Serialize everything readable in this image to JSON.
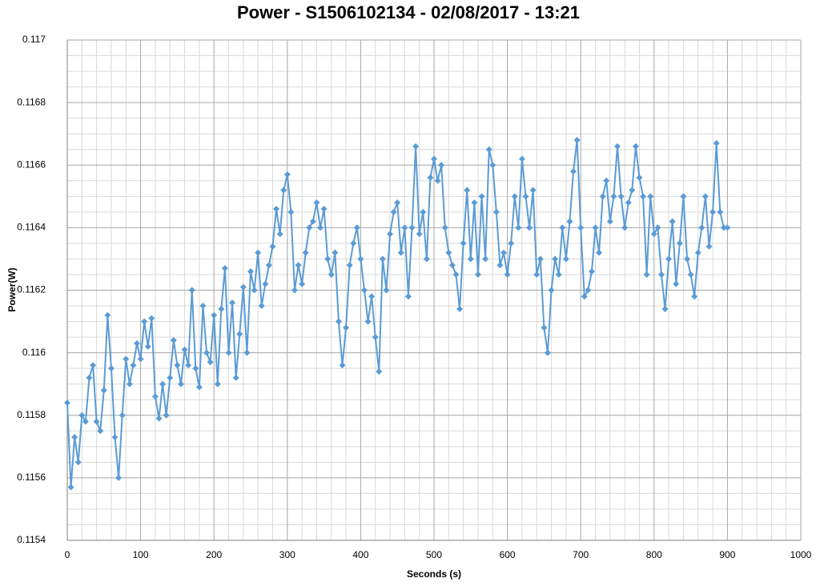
{
  "chart_data": {
    "type": "line",
    "title": "Power - S1506102134 - 02/08/2017 - 13:21",
    "x_label": "Seconds (s)",
    "y_label": "Power(W)",
    "xlim": [
      0,
      1000
    ],
    "ylim": [
      0.1154,
      0.117
    ],
    "xticks": [
      0,
      100,
      200,
      300,
      400,
      500,
      600,
      700,
      800,
      900,
      1000
    ],
    "yticks": [
      0.1154,
      0.1156,
      0.1158,
      0.116,
      0.1162,
      0.1164,
      0.1166,
      0.1168,
      0.117
    ],
    "xminorticks": [
      20,
      40,
      60,
      80,
      120,
      140,
      160,
      180,
      220,
      240,
      260,
      280,
      320,
      340,
      360,
      380,
      420,
      440,
      460,
      480,
      520,
      540,
      560,
      580,
      620,
      640,
      660,
      680,
      720,
      740,
      760,
      780,
      820,
      840,
      860,
      880,
      920,
      940,
      960,
      980
    ],
    "yminorticks": [
      0.11545,
      0.1155,
      0.11555,
      0.11565,
      0.1157,
      0.11575,
      0.11585,
      0.1159,
      0.11595,
      0.11605,
      0.1161,
      0.11615,
      0.11625,
      0.1163,
      0.11635,
      0.11645,
      0.1165,
      0.11655,
      0.11665,
      0.1167,
      0.11675,
      0.11685,
      0.1169,
      0.11695
    ],
    "grid": true,
    "x": [
      0,
      5,
      10,
      15,
      20,
      25,
      30,
      35,
      40,
      45,
      50,
      55,
      60,
      65,
      70,
      75,
      80,
      85,
      90,
      95,
      100,
      105,
      110,
      115,
      120,
      125,
      130,
      135,
      140,
      145,
      150,
      155,
      160,
      165,
      170,
      175,
      180,
      185,
      190,
      195,
      200,
      205,
      210,
      215,
      220,
      225,
      230,
      235,
      240,
      245,
      250,
      255,
      260,
      265,
      270,
      275,
      280,
      285,
      290,
      295,
      300,
      305,
      310,
      315,
      320,
      325,
      330,
      335,
      340,
      345,
      350,
      355,
      360,
      365,
      370,
      375,
      380,
      385,
      390,
      395,
      400,
      405,
      410,
      415,
      420,
      425,
      430,
      435,
      440,
      445,
      450,
      455,
      460,
      465,
      470,
      475,
      480,
      485,
      490,
      495,
      500,
      505,
      510,
      515,
      520,
      525,
      530,
      535,
      540,
      545,
      550,
      555,
      560,
      565,
      570,
      575,
      580,
      585,
      590,
      595,
      600,
      605,
      610,
      615,
      620,
      625,
      630,
      635,
      640,
      645,
      650,
      655,
      660,
      665,
      670,
      675,
      680,
      685,
      690,
      695,
      700,
      705,
      710,
      715,
      720,
      725,
      730,
      735,
      740,
      745,
      750,
      755,
      760,
      765,
      770,
      775,
      780,
      785,
      790,
      795,
      800,
      805,
      810,
      815,
      820,
      825,
      830,
      835,
      840,
      845,
      850,
      855,
      860,
      865,
      870,
      875,
      880,
      885,
      890,
      895,
      900
    ],
    "series": [
      {
        "color": "#5b9bd5",
        "values": [
          0.11584,
          0.11557,
          0.11573,
          0.11565,
          0.1158,
          0.11578,
          0.11592,
          0.11596,
          0.11578,
          0.11575,
          0.11588,
          0.11612,
          0.11595,
          0.11573,
          0.1156,
          0.1158,
          0.11598,
          0.1159,
          0.11596,
          0.11603,
          0.11598,
          0.1161,
          0.11602,
          0.11611,
          0.11586,
          0.11579,
          0.1159,
          0.1158,
          0.11592,
          0.11604,
          0.11596,
          0.1159,
          0.11601,
          0.11596,
          0.1162,
          0.11595,
          0.11589,
          0.11615,
          0.116,
          0.11597,
          0.11612,
          0.1159,
          0.11614,
          0.11627,
          0.116,
          0.11616,
          0.11592,
          0.11606,
          0.11621,
          0.116,
          0.11626,
          0.1162,
          0.11632,
          0.11615,
          0.11622,
          0.11628,
          0.11634,
          0.11646,
          0.11638,
          0.11652,
          0.11657,
          0.11645,
          0.1162,
          0.11628,
          0.11622,
          0.11632,
          0.1164,
          0.11642,
          0.11648,
          0.1164,
          0.11646,
          0.1163,
          0.11625,
          0.11632,
          0.1161,
          0.11596,
          0.11608,
          0.11628,
          0.11635,
          0.1164,
          0.1163,
          0.1162,
          0.1161,
          0.11618,
          0.11605,
          0.11594,
          0.1163,
          0.1162,
          0.11638,
          0.11645,
          0.11648,
          0.11632,
          0.1164,
          0.11618,
          0.1164,
          0.11666,
          0.11638,
          0.11645,
          0.1163,
          0.11656,
          0.11662,
          0.11655,
          0.1166,
          0.1164,
          0.11632,
          0.11628,
          0.11625,
          0.11614,
          0.11635,
          0.11652,
          0.1163,
          0.11648,
          0.11625,
          0.1165,
          0.1163,
          0.11665,
          0.1166,
          0.11645,
          0.11628,
          0.11632,
          0.11625,
          0.11635,
          0.1165,
          0.1164,
          0.11662,
          0.1165,
          0.1164,
          0.11652,
          0.11625,
          0.1163,
          0.11608,
          0.116,
          0.1162,
          0.1163,
          0.11625,
          0.1164,
          0.1163,
          0.11642,
          0.11658,
          0.11668,
          0.1164,
          0.11618,
          0.1162,
          0.11626,
          0.1164,
          0.11632,
          0.1165,
          0.11655,
          0.11642,
          0.1165,
          0.11666,
          0.1165,
          0.1164,
          0.11648,
          0.11652,
          0.11666,
          0.11656,
          0.1165,
          0.11625,
          0.1165,
          0.11638,
          0.1164,
          0.11625,
          0.11614,
          0.1163,
          0.11642,
          0.11622,
          0.11635,
          0.1165,
          0.1163,
          0.11625,
          0.11618,
          0.11632,
          0.1164,
          0.1165,
          0.11634,
          0.11645,
          0.11667,
          0.11645,
          0.1164,
          0.1164
        ]
      }
    ]
  }
}
